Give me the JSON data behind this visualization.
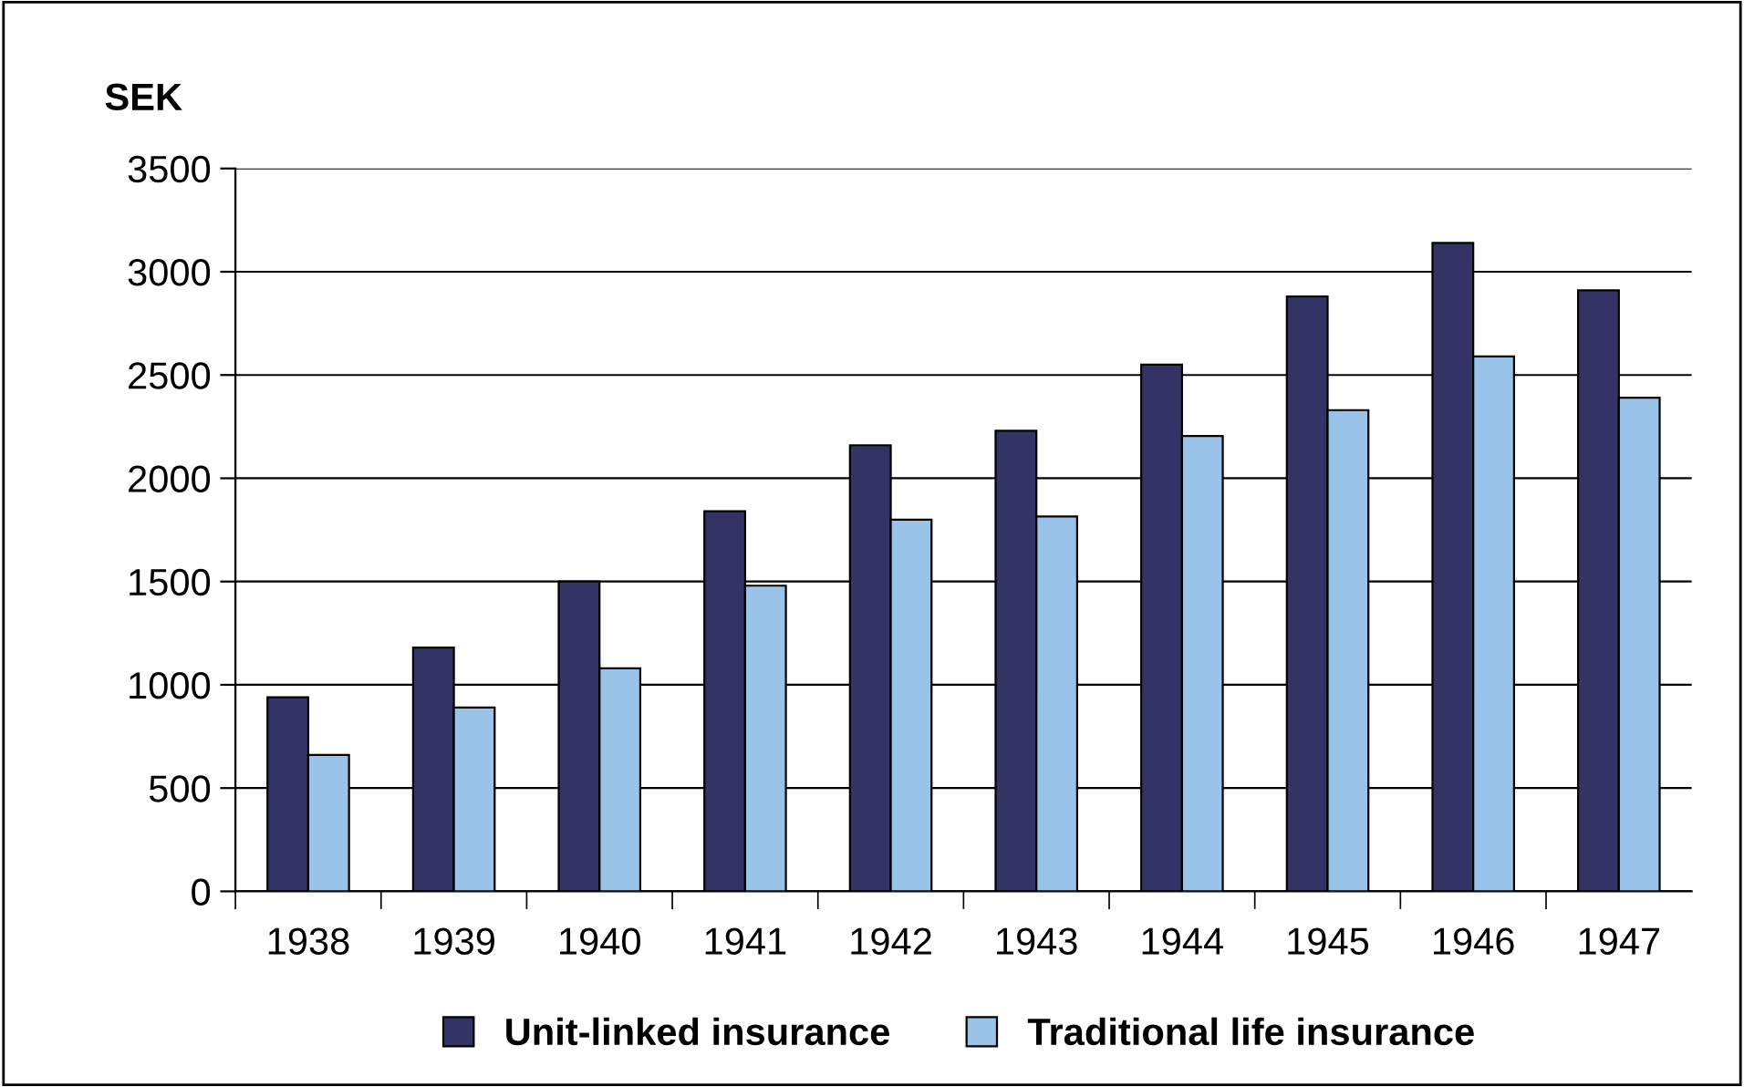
{
  "chart_data": {
    "type": "bar",
    "ylabel": "SEK",
    "categories": [
      "1938",
      "1939",
      "1940",
      "1941",
      "1942",
      "1943",
      "1944",
      "1945",
      "1946",
      "1947"
    ],
    "series": [
      {
        "name": "Unit-linked insurance",
        "color": "#333366",
        "values": [
          940,
          1180,
          1500,
          1840,
          2160,
          2230,
          2550,
          2880,
          3140,
          2910
        ]
      },
      {
        "name": "Traditional life insurance",
        "color": "#99c3e8",
        "values": [
          660,
          890,
          1080,
          1480,
          1800,
          1815,
          2205,
          2330,
          2590,
          2390
        ]
      }
    ],
    "ylim": [
      0,
      3500
    ],
    "yticks": [
      0,
      500,
      1000,
      1500,
      2000,
      2500,
      3000,
      3500
    ],
    "grid": "y",
    "legend": "bottom"
  }
}
